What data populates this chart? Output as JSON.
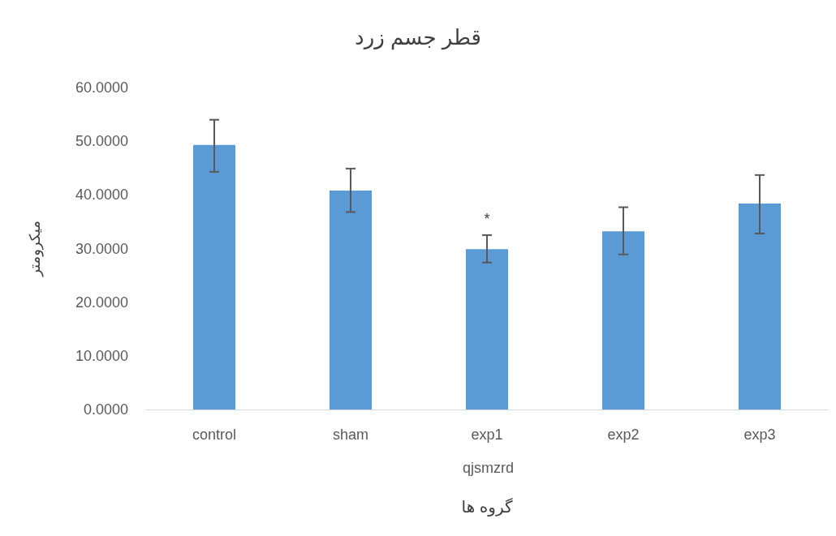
{
  "chart_data": {
    "type": "bar",
    "title": "قطر جسم زرد",
    "xlabel": "گروه ها",
    "ylabel": "میکرومتر",
    "categories": [
      "control",
      "sham",
      "exp1",
      "exp2",
      "exp3"
    ],
    "values": [
      49.3,
      40.8,
      29.9,
      33.2,
      38.4
    ],
    "errors": [
      [
        44.3,
        54.0
      ],
      [
        36.8,
        44.9
      ],
      [
        27.4,
        32.5
      ],
      [
        28.9,
        37.7
      ],
      [
        32.8,
        43.7
      ]
    ],
    "color": "#5b9bd5",
    "ylim": [
      0,
      60
    ],
    "yticks": [
      {
        "value": 0,
        "label": "0.0000"
      },
      {
        "value": 10,
        "label": "10.0000"
      },
      {
        "value": 20,
        "label": "20.0000"
      },
      {
        "value": 30,
        "label": "30.0000"
      },
      {
        "value": 40,
        "label": "40.0000"
      },
      {
        "value": 50,
        "label": "50.0000"
      },
      {
        "value": 60,
        "label": "60.0000"
      }
    ],
    "annotations": [
      {
        "text": "*",
        "x": "exp1",
        "y": 32.5
      },
      "qjsmzrd"
    ],
    "grid": false
  }
}
